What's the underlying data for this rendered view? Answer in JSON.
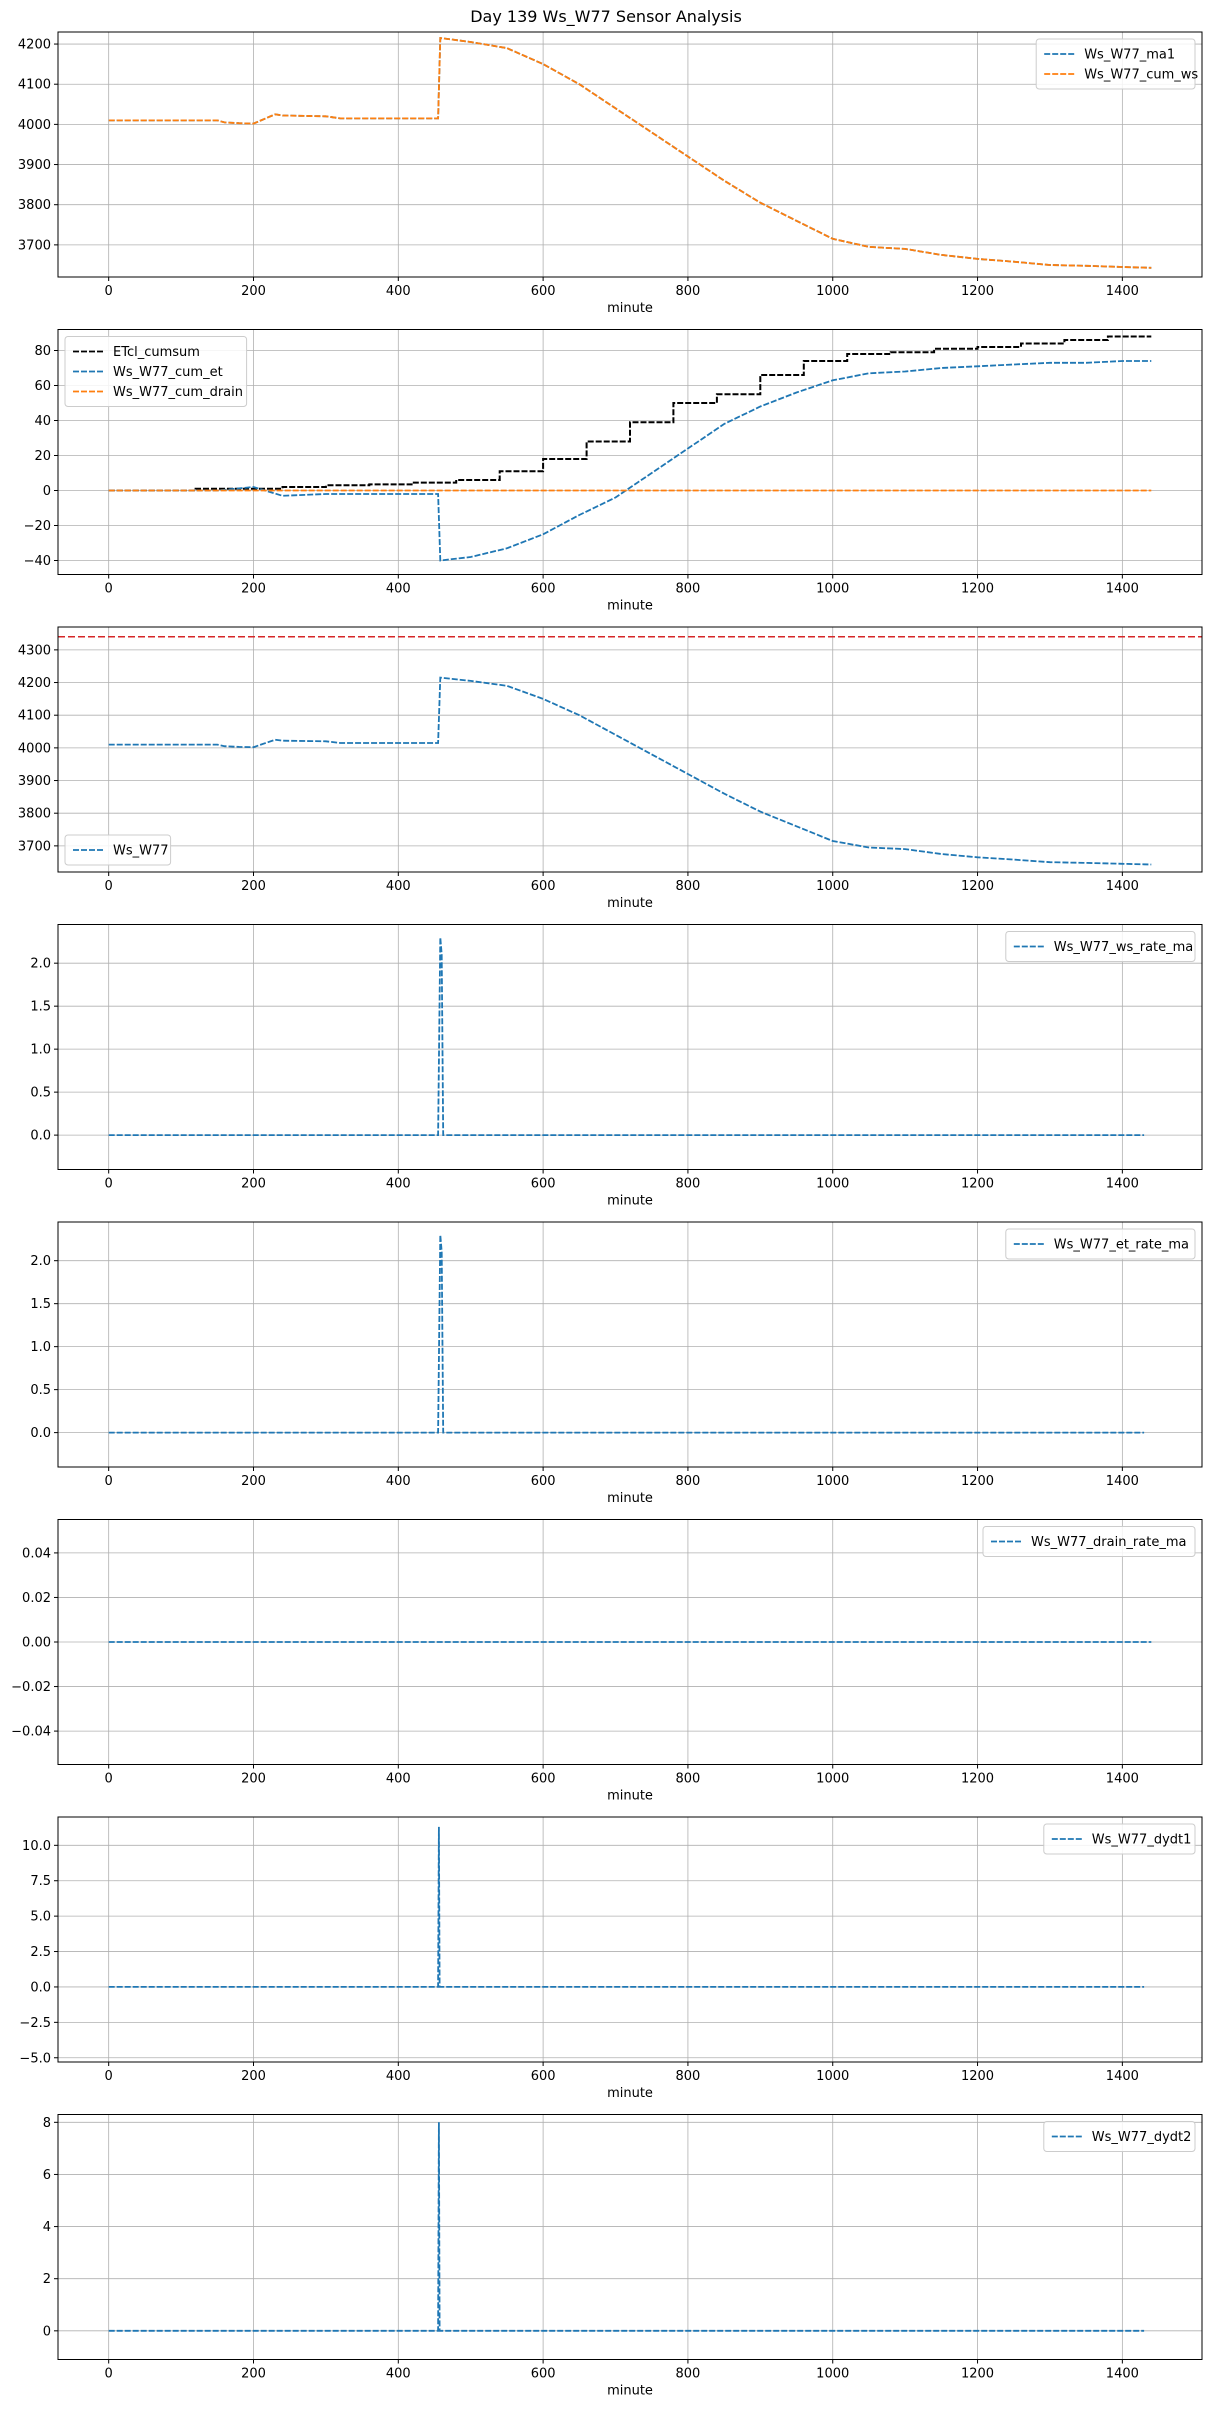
{
  "figure": {
    "title": "Day 139 Ws_W77 Sensor Analysis"
  },
  "colors": {
    "blue": "#1f77b4",
    "orange": "#ff7f0e",
    "black": "#000000",
    "red": "#d62728",
    "grid": "#b0b0b0"
  },
  "chart_data": [
    {
      "type": "line",
      "xlabel": "minute",
      "xlim": [
        -70,
        1510
      ],
      "ylim": [
        3620,
        4230
      ],
      "xticks": [
        0,
        200,
        400,
        600,
        800,
        1000,
        1200,
        1400
      ],
      "yticks": [
        3700,
        3800,
        3900,
        4000,
        4100,
        4200
      ],
      "ytick_labels": [
        "3700",
        "3800",
        "3900",
        "4000",
        "4100",
        "4200"
      ],
      "legend": "upper right",
      "series": [
        {
          "name": "Ws_W77_ma1",
          "color": "#1f77b4",
          "dashed": true,
          "x": [
            0,
            150,
            160,
            180,
            200,
            230,
            240,
            300,
            320,
            455,
            458,
            500,
            550,
            600,
            650,
            700,
            750,
            800,
            850,
            900,
            950,
            1000,
            1050,
            1100,
            1150,
            1200,
            1250,
            1300,
            1350,
            1400,
            1440
          ],
          "y": [
            4010,
            4010,
            4005,
            4003,
            4002,
            4025,
            4022,
            4020,
            4015,
            4015,
            4215,
            4205,
            4190,
            4150,
            4100,
            4040,
            3980,
            3920,
            3860,
            3805,
            3760,
            3715,
            3695,
            3690,
            3675,
            3665,
            3658,
            3650,
            3648,
            3645,
            3643
          ]
        },
        {
          "name": "Ws_W77_cum_ws",
          "color": "#ff7f0e",
          "dashed": true,
          "x": [
            0,
            150,
            160,
            180,
            200,
            230,
            240,
            300,
            320,
            455,
            458,
            500,
            550,
            600,
            650,
            700,
            750,
            800,
            850,
            900,
            950,
            1000,
            1050,
            1100,
            1150,
            1200,
            1250,
            1300,
            1350,
            1400,
            1440
          ],
          "y": [
            4010,
            4010,
            4005,
            4003,
            4002,
            4025,
            4022,
            4020,
            4015,
            4015,
            4215,
            4205,
            4190,
            4150,
            4100,
            4040,
            3980,
            3920,
            3860,
            3805,
            3760,
            3715,
            3695,
            3690,
            3675,
            3665,
            3658,
            3650,
            3648,
            3645,
            3643
          ]
        }
      ]
    },
    {
      "type": "line",
      "xlabel": "minute",
      "xlim": [
        -70,
        1510
      ],
      "ylim": [
        -48,
        92
      ],
      "xticks": [
        0,
        200,
        400,
        600,
        800,
        1000,
        1200,
        1400
      ],
      "yticks": [
        -40,
        -20,
        0,
        20,
        40,
        60,
        80
      ],
      "ytick_labels": [
        "−40",
        "−20",
        "0",
        "20",
        "40",
        "60",
        "80"
      ],
      "legend": "upper left",
      "series": [
        {
          "name": "ETcl_cumsum",
          "color": "#000000",
          "dashed": true,
          "step": true,
          "x": [
            0,
            120,
            240,
            300,
            360,
            420,
            480,
            540,
            600,
            660,
            720,
            780,
            840,
            900,
            960,
            1020,
            1080,
            1140,
            1200,
            1260,
            1320,
            1380,
            1440
          ],
          "y": [
            0,
            1,
            2,
            3,
            3.5,
            4.5,
            6,
            11,
            18,
            28,
            39,
            50,
            55,
            66,
            74,
            78,
            79,
            81,
            82,
            84,
            86,
            88,
            88
          ]
        },
        {
          "name": "Ws_W77_cum_et",
          "color": "#1f77b4",
          "dashed": true,
          "x": [
            0,
            150,
            200,
            240,
            300,
            455,
            458,
            500,
            550,
            600,
            650,
            700,
            750,
            800,
            850,
            900,
            950,
            1000,
            1050,
            1100,
            1150,
            1200,
            1250,
            1300,
            1350,
            1400,
            1440
          ],
          "y": [
            0,
            0,
            2,
            -3,
            -2,
            -2,
            -40,
            -38,
            -33,
            -25,
            -14,
            -4,
            10,
            24,
            38,
            48,
            56,
            63,
            67,
            68,
            70,
            71,
            72,
            73,
            73,
            74,
            74
          ]
        },
        {
          "name": "Ws_W77_cum_drain",
          "color": "#ff7f0e",
          "dashed": true,
          "x": [
            0,
            1440
          ],
          "y": [
            0,
            0
          ]
        }
      ]
    },
    {
      "type": "line",
      "xlabel": "minute",
      "xlim": [
        -70,
        1510
      ],
      "ylim": [
        3620,
        4370
      ],
      "xticks": [
        0,
        200,
        400,
        600,
        800,
        1000,
        1200,
        1400
      ],
      "yticks": [
        3700,
        3800,
        3900,
        4000,
        4100,
        4200,
        4300
      ],
      "ytick_labels": [
        "3700",
        "3800",
        "3900",
        "4000",
        "4100",
        "4200",
        "4300"
      ],
      "legend": "lower left",
      "hline": {
        "y": 4340,
        "color": "#d62728"
      },
      "series": [
        {
          "name": "Ws_W77",
          "color": "#1f77b4",
          "dashed": true,
          "x": [
            0,
            150,
            160,
            180,
            200,
            230,
            240,
            300,
            320,
            455,
            458,
            500,
            550,
            600,
            650,
            700,
            750,
            800,
            850,
            900,
            950,
            1000,
            1050,
            1100,
            1150,
            1200,
            1250,
            1300,
            1350,
            1400,
            1440
          ],
          "y": [
            4010,
            4010,
            4005,
            4003,
            4002,
            4025,
            4022,
            4020,
            4015,
            4015,
            4215,
            4205,
            4190,
            4150,
            4100,
            4040,
            3980,
            3920,
            3860,
            3805,
            3760,
            3715,
            3695,
            3690,
            3675,
            3665,
            3658,
            3650,
            3648,
            3645,
            3643
          ]
        }
      ]
    },
    {
      "type": "line",
      "xlabel": "minute",
      "xlim": [
        -70,
        1510
      ],
      "ylim": [
        -0.4,
        2.45
      ],
      "xticks": [
        0,
        200,
        400,
        600,
        800,
        1000,
        1200,
        1400
      ],
      "yticks": [
        0,
        0.5,
        1,
        1.5,
        2
      ],
      "ytick_labels": [
        "0.0",
        "0.5",
        "1.0",
        "1.5",
        "2.0"
      ],
      "legend": "upper right",
      "series": [
        {
          "name": "Ws_W77_ws_rate_ma",
          "color": "#1f77b4",
          "dashed": true,
          "x": [
            0,
            120,
            150,
            200,
            240,
            300,
            340,
            455,
            458,
            460,
            462,
            520,
            600,
            700,
            800,
            900,
            1000,
            1100,
            1200,
            1300,
            1320,
            1400,
            1430
          ],
          "y": [
            0,
            0,
            0,
            0,
            0,
            0,
            0,
            0,
            2.3,
            2.1,
            0,
            0,
            0,
            0,
            0,
            0,
            0,
            0,
            0,
            0,
            0,
            0,
            0
          ]
        }
      ]
    },
    {
      "type": "line",
      "xlabel": "minute",
      "xlim": [
        -70,
        1510
      ],
      "ylim": [
        -0.4,
        2.45
      ],
      "xticks": [
        0,
        200,
        400,
        600,
        800,
        1000,
        1200,
        1400
      ],
      "yticks": [
        0,
        0.5,
        1,
        1.5,
        2
      ],
      "ytick_labels": [
        "0.0",
        "0.5",
        "1.0",
        "1.5",
        "2.0"
      ],
      "legend": "upper right",
      "series": [
        {
          "name": "Ws_W77_et_rate_ma",
          "color": "#1f77b4",
          "dashed": true,
          "x": [
            0,
            120,
            150,
            200,
            240,
            300,
            340,
            455,
            458,
            460,
            462,
            520,
            600,
            700,
            800,
            900,
            1000,
            1100,
            1200,
            1300,
            1320,
            1400,
            1430
          ],
          "y": [
            0,
            0,
            0,
            0,
            0,
            0,
            0,
            0,
            2.3,
            2.1,
            0,
            0,
            0,
            0,
            0,
            0,
            0,
            0,
            0,
            0,
            0,
            0,
            0
          ]
        }
      ]
    },
    {
      "type": "line",
      "xlabel": "minute",
      "xlim": [
        -70,
        1510
      ],
      "ylim": [
        -0.055,
        0.055
      ],
      "xticks": [
        0,
        200,
        400,
        600,
        800,
        1000,
        1200,
        1400
      ],
      "yticks": [
        -0.04,
        -0.02,
        0,
        0.02,
        0.04
      ],
      "ytick_labels": [
        "−0.04",
        "−0.02",
        "0.00",
        "0.02",
        "0.04"
      ],
      "legend": "upper right",
      "series": [
        {
          "name": "Ws_W77_drain_rate_ma",
          "color": "#1f77b4",
          "dashed": true,
          "x": [
            0,
            1440
          ],
          "y": [
            0,
            0
          ]
        }
      ]
    },
    {
      "type": "line",
      "xlabel": "minute",
      "xlim": [
        -70,
        1510
      ],
      "ylim": [
        -5.3,
        12
      ],
      "xticks": [
        0,
        200,
        400,
        600,
        800,
        1000,
        1200,
        1400
      ],
      "yticks": [
        -5,
        -2.5,
        0,
        2.5,
        5,
        7.5,
        10
      ],
      "ytick_labels": [
        "−5.0",
        "−2.5",
        "0.0",
        "2.5",
        "5.0",
        "7.5",
        "10.0"
      ],
      "legend": "upper right",
      "series": [
        {
          "name": "Ws_W77_dydt1",
          "color": "#1f77b4",
          "dashed": true,
          "x": [
            0,
            120,
            200,
            230,
            300,
            455,
            456,
            457,
            458,
            600,
            800,
            1000,
            1200,
            1300,
            1320,
            1400,
            1430
          ],
          "y": [
            0,
            0,
            0,
            0,
            0,
            0,
            11.3,
            0,
            0,
            0,
            0,
            0,
            0,
            0,
            0,
            0,
            0
          ]
        }
      ]
    },
    {
      "type": "line",
      "xlabel": "minute",
      "xlim": [
        -70,
        1510
      ],
      "ylim": [
        -1.1,
        8.3
      ],
      "xticks": [
        0,
        200,
        400,
        600,
        800,
        1000,
        1200,
        1400
      ],
      "yticks": [
        0,
        2,
        4,
        6,
        8
      ],
      "ytick_labels": [
        "0",
        "2",
        "4",
        "6",
        "8"
      ],
      "legend": "upper right",
      "series": [
        {
          "name": "Ws_W77_dydt2",
          "color": "#1f77b4",
          "dashed": true,
          "x": [
            0,
            120,
            200,
            230,
            300,
            455,
            456,
            457,
            458,
            600,
            800,
            1000,
            1200,
            1300,
            1320,
            1400,
            1430
          ],
          "y": [
            0,
            0,
            0,
            0,
            0,
            0,
            8,
            0,
            0,
            0,
            0,
            0,
            0,
            0,
            0,
            0,
            0
          ]
        }
      ]
    }
  ]
}
